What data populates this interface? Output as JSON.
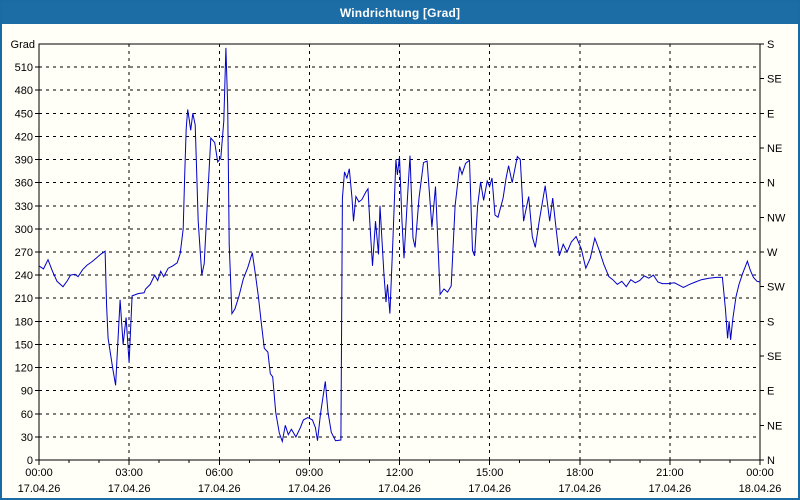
{
  "window": {
    "title": "Windrichtung [Grad]"
  },
  "colors": {
    "frame": "#1A6AA3",
    "titlebar_bg": "#1C6DA6",
    "titlebar_text": "#FFFFFF",
    "background": "#FFFEF7",
    "axis": "#000000",
    "grid": "#000000",
    "line": "#0000C8",
    "text": "#000000"
  },
  "chart_data": {
    "type": "line",
    "title": "Windrichtung [Grad]",
    "ylabel_left": "Grad",
    "grid": "dashed",
    "legend": "none",
    "ylim": [
      0,
      540
    ],
    "xlim_hours": [
      0,
      24
    ],
    "y_left_ticks": [
      0,
      30,
      60,
      90,
      120,
      150,
      180,
      210,
      240,
      270,
      300,
      330,
      360,
      390,
      420,
      450,
      480,
      510
    ],
    "y_right_ticks": [
      {
        "deg": 0,
        "label": "N"
      },
      {
        "deg": 45,
        "label": "NE"
      },
      {
        "deg": 90,
        "label": "E"
      },
      {
        "deg": 135,
        "label": "SE"
      },
      {
        "deg": 180,
        "label": "S"
      },
      {
        "deg": 225,
        "label": "SW"
      },
      {
        "deg": 270,
        "label": "W"
      },
      {
        "deg": 315,
        "label": "NW"
      },
      {
        "deg": 360,
        "label": "N"
      },
      {
        "deg": 405,
        "label": "NE"
      },
      {
        "deg": 450,
        "label": "E"
      },
      {
        "deg": 495,
        "label": "SE"
      },
      {
        "deg": 540,
        "label": "S"
      }
    ],
    "x_major_ticks": [
      {
        "hour": 0,
        "time": "00:00",
        "date": "17.04.26"
      },
      {
        "hour": 3,
        "time": "03:00",
        "date": "17.04.26"
      },
      {
        "hour": 6,
        "time": "06:00",
        "date": "17.04.26"
      },
      {
        "hour": 9,
        "time": "09:00",
        "date": "17.04.26"
      },
      {
        "hour": 12,
        "time": "12:00",
        "date": "17.04.26"
      },
      {
        "hour": 15,
        "time": "15:00",
        "date": "17.04.26"
      },
      {
        "hour": 18,
        "time": "18:00",
        "date": "17.04.26"
      },
      {
        "hour": 21,
        "time": "21:00",
        "date": "17.04.26"
      },
      {
        "hour": 24,
        "time": "00:00",
        "date": "18.04.26"
      }
    ],
    "x_minor_interval_hours": 1,
    "series": [
      {
        "name": "Windrichtung",
        "color": "#0000C8",
        "points": [
          [
            0.0,
            252
          ],
          [
            0.15,
            248
          ],
          [
            0.3,
            260
          ],
          [
            0.45,
            245
          ],
          [
            0.6,
            232
          ],
          [
            0.8,
            225
          ],
          [
            0.95,
            233
          ],
          [
            1.05,
            240
          ],
          [
            1.2,
            241
          ],
          [
            1.3,
            238
          ],
          [
            1.45,
            247
          ],
          [
            1.6,
            253
          ],
          [
            1.75,
            257
          ],
          [
            1.9,
            262
          ],
          [
            2.05,
            267
          ],
          [
            2.2,
            271
          ],
          [
            2.25,
            200
          ],
          [
            2.3,
            158
          ],
          [
            2.45,
            120
          ],
          [
            2.55,
            97
          ],
          [
            2.7,
            208
          ],
          [
            2.8,
            150
          ],
          [
            2.9,
            185
          ],
          [
            3.0,
            126
          ],
          [
            3.1,
            213
          ],
          [
            3.3,
            216
          ],
          [
            3.5,
            217
          ],
          [
            3.55,
            222
          ],
          [
            3.7,
            228
          ],
          [
            3.85,
            240
          ],
          [
            3.95,
            233
          ],
          [
            4.05,
            245
          ],
          [
            4.15,
            238
          ],
          [
            4.3,
            249
          ],
          [
            4.45,
            252
          ],
          [
            4.6,
            256
          ],
          [
            4.7,
            268
          ],
          [
            4.8,
            300
          ],
          [
            4.85,
            370
          ],
          [
            4.9,
            430
          ],
          [
            4.95,
            455
          ],
          [
            5.0,
            442
          ],
          [
            5.05,
            428
          ],
          [
            5.12,
            450
          ],
          [
            5.2,
            435
          ],
          [
            5.3,
            310
          ],
          [
            5.42,
            240
          ],
          [
            5.5,
            255
          ],
          [
            5.6,
            330
          ],
          [
            5.72,
            418
          ],
          [
            5.85,
            412
          ],
          [
            5.95,
            387
          ],
          [
            6.05,
            392
          ],
          [
            6.15,
            440
          ],
          [
            6.22,
            535
          ],
          [
            6.28,
            460
          ],
          [
            6.33,
            280
          ],
          [
            6.42,
            190
          ],
          [
            6.52,
            196
          ],
          [
            6.65,
            212
          ],
          [
            6.8,
            235
          ],
          [
            6.95,
            250
          ],
          [
            7.1,
            269
          ],
          [
            7.2,
            242
          ],
          [
            7.3,
            213
          ],
          [
            7.4,
            178
          ],
          [
            7.5,
            145
          ],
          [
            7.62,
            140
          ],
          [
            7.7,
            112
          ],
          [
            7.78,
            108
          ],
          [
            7.88,
            62
          ],
          [
            8.0,
            35
          ],
          [
            8.1,
            24
          ],
          [
            8.2,
            45
          ],
          [
            8.3,
            33
          ],
          [
            8.4,
            40
          ],
          [
            8.55,
            30
          ],
          [
            8.7,
            42
          ],
          [
            8.8,
            52
          ],
          [
            8.95,
            55
          ],
          [
            9.1,
            52
          ],
          [
            9.2,
            42
          ],
          [
            9.27,
            25
          ],
          [
            9.37,
            60
          ],
          [
            9.53,
            102
          ],
          [
            9.62,
            62
          ],
          [
            9.73,
            36
          ],
          [
            9.87,
            25
          ],
          [
            10.05,
            26
          ],
          [
            10.1,
            340
          ],
          [
            10.17,
            374
          ],
          [
            10.25,
            366
          ],
          [
            10.33,
            378
          ],
          [
            10.42,
            340
          ],
          [
            10.47,
            310
          ],
          [
            10.55,
            342
          ],
          [
            10.65,
            335
          ],
          [
            10.75,
            338
          ],
          [
            10.88,
            348
          ],
          [
            10.95,
            352
          ],
          [
            11.02,
            302
          ],
          [
            11.1,
            252
          ],
          [
            11.2,
            310
          ],
          [
            11.3,
            267
          ],
          [
            11.35,
            330
          ],
          [
            11.48,
            242
          ],
          [
            11.55,
            205
          ],
          [
            11.6,
            228
          ],
          [
            11.68,
            190
          ],
          [
            11.78,
            285
          ],
          [
            11.88,
            390
          ],
          [
            11.93,
            370
          ],
          [
            12.0,
            394
          ],
          [
            12.08,
            312
          ],
          [
            12.15,
            262
          ],
          [
            12.28,
            350
          ],
          [
            12.35,
            395
          ],
          [
            12.45,
            288
          ],
          [
            12.52,
            276
          ],
          [
            12.65,
            340
          ],
          [
            12.8,
            386
          ],
          [
            12.92,
            388
          ],
          [
            13.0,
            345
          ],
          [
            13.08,
            302
          ],
          [
            13.2,
            355
          ],
          [
            13.35,
            215
          ],
          [
            13.48,
            222
          ],
          [
            13.6,
            218
          ],
          [
            13.72,
            226
          ],
          [
            13.85,
            330
          ],
          [
            14.0,
            381
          ],
          [
            14.08,
            371
          ],
          [
            14.2,
            385
          ],
          [
            14.33,
            389
          ],
          [
            14.43,
            272
          ],
          [
            14.5,
            265
          ],
          [
            14.6,
            330
          ],
          [
            14.7,
            361
          ],
          [
            14.8,
            337
          ],
          [
            14.92,
            362
          ],
          [
            15.0,
            355
          ],
          [
            15.08,
            366
          ],
          [
            15.18,
            318
          ],
          [
            15.28,
            315
          ],
          [
            15.45,
            340
          ],
          [
            15.55,
            366
          ],
          [
            15.63,
            382
          ],
          [
            15.75,
            360
          ],
          [
            15.92,
            394
          ],
          [
            16.02,
            390
          ],
          [
            16.13,
            310
          ],
          [
            16.3,
            342
          ],
          [
            16.42,
            290
          ],
          [
            16.52,
            276
          ],
          [
            16.65,
            310
          ],
          [
            16.85,
            356
          ],
          [
            17.0,
            310
          ],
          [
            17.1,
            340
          ],
          [
            17.22,
            298
          ],
          [
            17.32,
            265
          ],
          [
            17.45,
            280
          ],
          [
            17.58,
            270
          ],
          [
            17.72,
            283
          ],
          [
            17.88,
            290
          ],
          [
            18.05,
            274
          ],
          [
            18.2,
            249
          ],
          [
            18.35,
            262
          ],
          [
            18.5,
            288
          ],
          [
            18.65,
            272
          ],
          [
            18.8,
            254
          ],
          [
            18.97,
            238
          ],
          [
            19.1,
            234
          ],
          [
            19.25,
            228
          ],
          [
            19.4,
            232
          ],
          [
            19.55,
            225
          ],
          [
            19.7,
            234
          ],
          [
            19.85,
            230
          ],
          [
            20.0,
            233
          ],
          [
            20.15,
            239
          ],
          [
            20.3,
            236
          ],
          [
            20.45,
            240
          ],
          [
            20.6,
            231
          ],
          [
            20.75,
            229
          ],
          [
            20.95,
            229
          ],
          [
            21.15,
            230
          ],
          [
            21.3,
            227
          ],
          [
            21.45,
            224
          ],
          [
            21.65,
            228
          ],
          [
            21.85,
            231
          ],
          [
            22.05,
            234
          ],
          [
            22.3,
            236
          ],
          [
            22.55,
            237
          ],
          [
            22.75,
            237
          ],
          [
            22.85,
            195
          ],
          [
            22.92,
            158
          ],
          [
            22.97,
            180
          ],
          [
            23.02,
            156
          ],
          [
            23.1,
            185
          ],
          [
            23.2,
            212
          ],
          [
            23.3,
            228
          ],
          [
            23.42,
            242
          ],
          [
            23.58,
            258
          ],
          [
            23.68,
            246
          ],
          [
            23.78,
            237
          ],
          [
            23.9,
            232
          ],
          [
            24.0,
            231
          ]
        ]
      }
    ]
  }
}
